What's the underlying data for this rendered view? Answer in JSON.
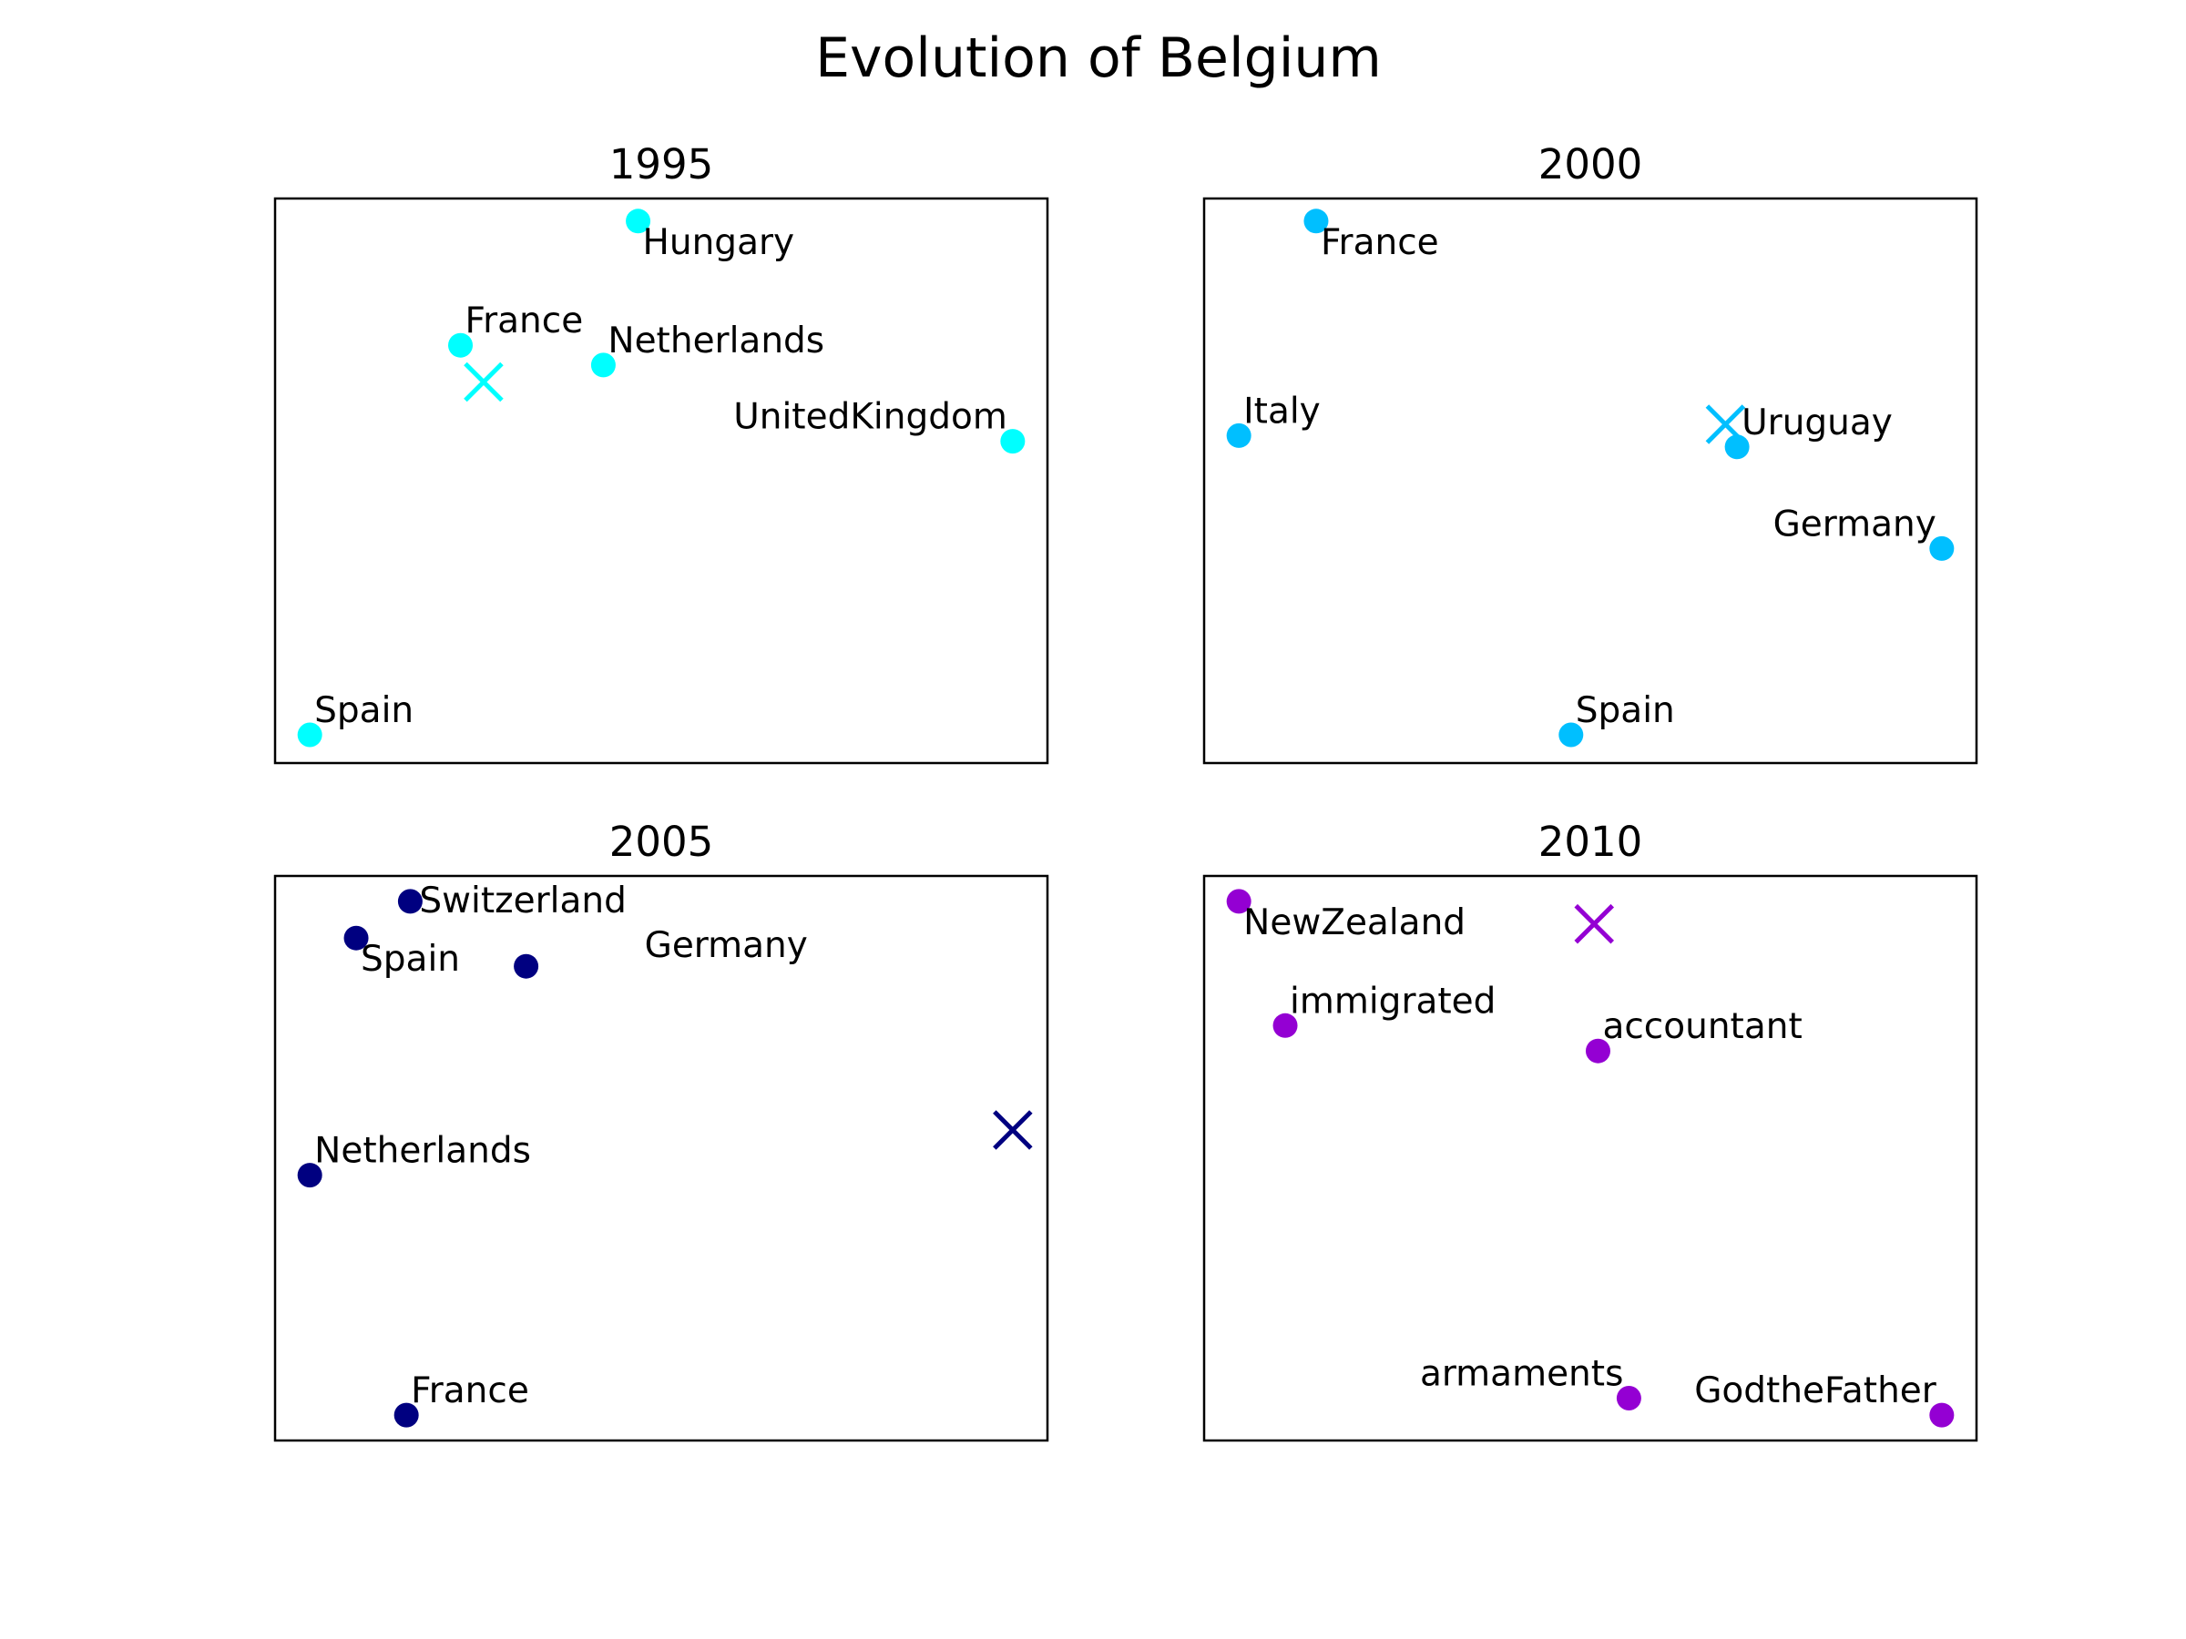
{
  "figure": {
    "title": "Evolution of Belgium"
  },
  "chart_data": [
    {
      "type": "scatter",
      "title": "1995",
      "color": "#00ffff",
      "xlim": [
        0,
        100
      ],
      "ylim": [
        0,
        100
      ],
      "axes_visible": false,
      "grid": false,
      "points": [
        {
          "label": "Hungary",
          "x": 47,
          "y": 96,
          "label_pos": "below-right"
        },
        {
          "label": "France",
          "x": 24,
          "y": 74,
          "label_pos": "above-right"
        },
        {
          "label": "Netherlands",
          "x": 42.5,
          "y": 70.5,
          "label_pos": "above-right"
        },
        {
          "label": "UnitedKingdom",
          "x": 95.5,
          "y": 57,
          "label_pos": "above-left"
        },
        {
          "label": "Spain",
          "x": 4.5,
          "y": 5,
          "label_pos": "above-right"
        }
      ],
      "centroid": {
        "x": 27,
        "y": 67.5
      }
    },
    {
      "type": "scatter",
      "title": "2000",
      "color": "#00bfff",
      "xlim": [
        0,
        100
      ],
      "ylim": [
        0,
        100
      ],
      "axes_visible": false,
      "grid": false,
      "points": [
        {
          "label": "France",
          "x": 14.5,
          "y": 96,
          "label_pos": "below-right"
        },
        {
          "label": "Italy",
          "x": 4.5,
          "y": 58,
          "label_pos": "above-right"
        },
        {
          "label": "Uruguay",
          "x": 69,
          "y": 56,
          "label_pos": "above-right"
        },
        {
          "label": "Germany",
          "x": 95.5,
          "y": 38,
          "label_pos": "above-left"
        },
        {
          "label": "Spain",
          "x": 47.5,
          "y": 5,
          "label_pos": "above-right"
        }
      ],
      "centroid": {
        "x": 67.5,
        "y": 60
      }
    },
    {
      "type": "scatter",
      "title": "2005",
      "color": "#000080",
      "xlim": [
        0,
        100
      ],
      "ylim": [
        0,
        100
      ],
      "axes_visible": false,
      "grid": false,
      "points": [
        {
          "label": "Switzerland",
          "x": 17.5,
          "y": 95.5,
          "label_pos": "right"
        },
        {
          "label": "Spain",
          "x": 10.5,
          "y": 89,
          "label_pos": "below-right"
        },
        {
          "label": "Germany",
          "x": 32.5,
          "y": 84,
          "label_pos": "label-offset"
        },
        {
          "label": "Netherlands",
          "x": 4.5,
          "y": 47,
          "label_pos": "above-right"
        },
        {
          "label": "France",
          "x": 17,
          "y": 4.5,
          "label_pos": "above-right"
        }
      ],
      "centroid": {
        "x": 95.5,
        "y": 55
      }
    },
    {
      "type": "scatter",
      "title": "2010",
      "color": "#9400d3",
      "xlim": [
        0,
        100
      ],
      "ylim": [
        0,
        100
      ],
      "axes_visible": false,
      "grid": false,
      "points": [
        {
          "label": "NewZealand",
          "x": 4.5,
          "y": 95.5,
          "label_pos": "below-right"
        },
        {
          "label": "immigrated",
          "x": 10.5,
          "y": 73.5,
          "label_pos": "above-right"
        },
        {
          "label": "accountant",
          "x": 51,
          "y": 69,
          "label_pos": "above-right"
        },
        {
          "label": "armaments",
          "x": 55,
          "y": 7.5,
          "label_pos": "above-left"
        },
        {
          "label": "GodtheFather",
          "x": 95.5,
          "y": 4.5,
          "label_pos": "above-left"
        }
      ],
      "centroid": {
        "x": 50.5,
        "y": 91.5
      }
    }
  ]
}
